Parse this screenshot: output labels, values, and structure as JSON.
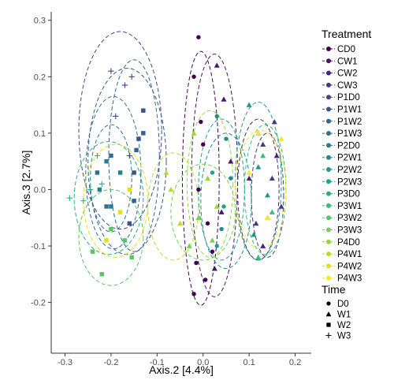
{
  "chart_data": {
    "type": "scatter",
    "xlabel": "Axis.2  [4.4%]",
    "ylabel": "Axis.3  [2.7%]",
    "xlim": [
      -0.33,
      0.235
    ],
    "ylim": [
      -0.29,
      0.315
    ],
    "x_ticks": [
      -0.3,
      -0.2,
      -0.1,
      0.0,
      0.1,
      0.2
    ],
    "x_tick_labels": [
      "-0.3",
      "-0.2",
      "-0.1",
      "0.0",
      "0.1",
      "0.2"
    ],
    "y_ticks": [
      -0.2,
      -0.1,
      0.0,
      0.1,
      0.2,
      0.3
    ],
    "y_tick_labels": [
      "-0.2",
      "-0.1",
      "0.0",
      "0.1",
      "0.2",
      "0.3"
    ],
    "grid": false,
    "legend_position": "right",
    "treatment_legend": {
      "title": "Treatment",
      "entries": [
        {
          "name": "CD0",
          "color": "#440154"
        },
        {
          "name": "CW1",
          "color": "#481568"
        },
        {
          "name": "CW2",
          "color": "#482677"
        },
        {
          "name": "CW3",
          "color": "#453781"
        },
        {
          "name": "P1D0",
          "color": "#3F4788"
        },
        {
          "name": "P1W1",
          "color": "#39558C"
        },
        {
          "name": "P1W2",
          "color": "#32648E"
        },
        {
          "name": "P1W3",
          "color": "#2D718E"
        },
        {
          "name": "P2D0",
          "color": "#287D8E"
        },
        {
          "name": "P2W1",
          "color": "#238A8D"
        },
        {
          "name": "P2W2",
          "color": "#1F968B"
        },
        {
          "name": "P2W3",
          "color": "#20A386"
        },
        {
          "name": "P3D0",
          "color": "#29AF7F"
        },
        {
          "name": "P3W1",
          "color": "#3CBC75"
        },
        {
          "name": "P3W2",
          "color": "#56C667"
        },
        {
          "name": "P3W3",
          "color": "#75D054"
        },
        {
          "name": "P4D0",
          "color": "#95D840"
        },
        {
          "name": "P4W1",
          "color": "#BADE28"
        },
        {
          "name": "P4W2",
          "color": "#DDE318"
        },
        {
          "name": "P4W3",
          "color": "#FDE725"
        }
      ]
    },
    "time_legend": {
      "title": "Time",
      "entries": [
        {
          "name": "D0",
          "shape": "circle"
        },
        {
          "name": "W1",
          "shape": "triangle"
        },
        {
          "name": "W2",
          "shape": "square"
        },
        {
          "name": "W3",
          "shape": "plus"
        }
      ]
    },
    "ellipses": [
      {
        "group": "CD0",
        "cx": -0.005,
        "cy": 0.02,
        "rx": 0.04,
        "ry": 0.225
      },
      {
        "group": "CW1",
        "cx": 0.025,
        "cy": 0.025,
        "rx": 0.05,
        "ry": 0.215
      },
      {
        "group": "CW2",
        "cx": 0.12,
        "cy": 0.0,
        "rx": 0.045,
        "ry": 0.125
      },
      {
        "group": "CW3",
        "cx": 0.14,
        "cy": -0.01,
        "rx": 0.035,
        "ry": 0.11
      },
      {
        "group": "P1D0",
        "cx": -0.18,
        "cy": 0.105,
        "rx": 0.09,
        "ry": 0.175
      },
      {
        "group": "P1W1",
        "cx": -0.165,
        "cy": 0.05,
        "rx": 0.085,
        "ry": 0.165
      },
      {
        "group": "P1W2",
        "cx": -0.15,
        "cy": 0.06,
        "rx": 0.055,
        "ry": 0.17
      },
      {
        "group": "P1W3",
        "cx": -0.195,
        "cy": 0.03,
        "rx": 0.06,
        "ry": 0.135
      },
      {
        "group": "P2D0",
        "cx": -0.2,
        "cy": 0.02,
        "rx": 0.045,
        "ry": 0.095
      },
      {
        "group": "P2W1",
        "cx": 0.05,
        "cy": -0.02,
        "rx": 0.055,
        "ry": 0.12
      },
      {
        "group": "P2W2",
        "cx": 0.12,
        "cy": 0.015,
        "rx": 0.05,
        "ry": 0.14
      },
      {
        "group": "P2W3",
        "cx": 0.04,
        "cy": 0.0,
        "rx": 0.05,
        "ry": 0.125
      },
      {
        "group": "P3D0",
        "cx": -0.205,
        "cy": -0.015,
        "rx": 0.075,
        "ry": 0.1
      },
      {
        "group": "P3W1",
        "cx": 0.135,
        "cy": 0.0,
        "rx": 0.045,
        "ry": 0.115
      },
      {
        "group": "P3W2",
        "cx": -0.2,
        "cy": -0.085,
        "rx": 0.07,
        "ry": 0.085
      },
      {
        "group": "P3W3",
        "cx": 0.0,
        "cy": -0.04,
        "rx": 0.07,
        "ry": 0.085
      },
      {
        "group": "P4D0",
        "cx": 0.015,
        "cy": 0.01,
        "rx": 0.05,
        "ry": 0.13
      },
      {
        "group": "P4W1",
        "cx": -0.065,
        "cy": -0.03,
        "rx": 0.055,
        "ry": 0.095
      },
      {
        "group": "P4W2",
        "cx": -0.19,
        "cy": -0.02,
        "rx": 0.07,
        "ry": 0.1
      },
      {
        "group": "P4W3",
        "cx": 0.125,
        "cy": 0.0,
        "rx": 0.055,
        "ry": 0.105
      }
    ],
    "points": [
      {
        "x": -0.01,
        "y": 0.27,
        "group": "CD0",
        "time": "D0"
      },
      {
        "x": -0.02,
        "y": 0.2,
        "group": "CD0",
        "time": "D0"
      },
      {
        "x": -0.005,
        "y": 0.12,
        "group": "CD0",
        "time": "D0"
      },
      {
        "x": 0.0,
        "y": 0.08,
        "group": "CD0",
        "time": "D0"
      },
      {
        "x": -0.01,
        "y": 0.0,
        "group": "CD0",
        "time": "D0"
      },
      {
        "x": 0.01,
        "y": -0.06,
        "group": "CD0",
        "time": "D0"
      },
      {
        "x": -0.015,
        "y": -0.13,
        "group": "CD0",
        "time": "D0"
      },
      {
        "x": 0.005,
        "y": -0.16,
        "group": "CD0",
        "time": "D0"
      },
      {
        "x": -0.02,
        "y": -0.185,
        "group": "CD0",
        "time": "D0"
      },
      {
        "x": 0.02,
        "y": -0.11,
        "group": "CD0",
        "time": "D0"
      },
      {
        "x": 0.045,
        "y": 0.16,
        "group": "CW1",
        "time": "W1"
      },
      {
        "x": 0.03,
        "y": 0.22,
        "group": "CW1",
        "time": "W1"
      },
      {
        "x": 0.06,
        "y": 0.05,
        "group": "CW1",
        "time": "W1"
      },
      {
        "x": 0.04,
        "y": -0.04,
        "group": "CW1",
        "time": "W1"
      },
      {
        "x": 0.025,
        "y": -0.14,
        "group": "CW1",
        "time": "W1"
      },
      {
        "x": 0.12,
        "y": 0.1,
        "group": "CW2",
        "time": "W1"
      },
      {
        "x": 0.1,
        "y": 0.02,
        "group": "CW2",
        "time": "W1"
      },
      {
        "x": 0.14,
        "y": -0.05,
        "group": "CW2",
        "time": "W1"
      },
      {
        "x": 0.16,
        "y": 0.06,
        "group": "CW2",
        "time": "W1"
      },
      {
        "x": 0.13,
        "y": -0.1,
        "group": "CW2",
        "time": "W1"
      },
      {
        "x": 0.15,
        "y": 0.02,
        "group": "CW3",
        "time": "W1"
      },
      {
        "x": 0.13,
        "y": 0.08,
        "group": "CW3",
        "time": "W1"
      },
      {
        "x": 0.17,
        "y": -0.03,
        "group": "CW3",
        "time": "W1"
      },
      {
        "x": 0.115,
        "y": -0.06,
        "group": "CW3",
        "time": "W1"
      },
      {
        "x": 0.155,
        "y": 0.12,
        "group": "CW3",
        "time": "W1"
      },
      {
        "x": -0.2,
        "y": 0.21,
        "group": "P1D0",
        "time": "W3"
      },
      {
        "x": -0.17,
        "y": 0.185,
        "group": "P1D0",
        "time": "W3"
      },
      {
        "x": -0.155,
        "y": 0.2,
        "group": "P1D0",
        "time": "W3"
      },
      {
        "x": -0.19,
        "y": 0.13,
        "group": "P1D0",
        "time": "W3"
      },
      {
        "x": -0.16,
        "y": 0.06,
        "group": "P1D0",
        "time": "W3"
      },
      {
        "x": -0.13,
        "y": 0.14,
        "group": "P1W1",
        "time": "W2"
      },
      {
        "x": -0.14,
        "y": 0.09,
        "group": "P1W1",
        "time": "W2"
      },
      {
        "x": -0.15,
        "y": 0.03,
        "group": "P1W1",
        "time": "W2"
      },
      {
        "x": -0.16,
        "y": -0.06,
        "group": "P1W1",
        "time": "W2"
      },
      {
        "x": -0.13,
        "y": 0.1,
        "group": "P1W2",
        "time": "W2"
      },
      {
        "x": -0.145,
        "y": 0.07,
        "group": "P1W2",
        "time": "W2"
      },
      {
        "x": -0.15,
        "y": -0.02,
        "group": "P1W2",
        "time": "W2"
      },
      {
        "x": -0.2,
        "y": 0.06,
        "group": "P1W3",
        "time": "W2"
      },
      {
        "x": -0.23,
        "y": 0.03,
        "group": "P1W3",
        "time": "W2"
      },
      {
        "x": -0.21,
        "y": -0.03,
        "group": "P1W3",
        "time": "W2"
      },
      {
        "x": -0.225,
        "y": 0.0,
        "group": "P2D0",
        "time": "W2"
      },
      {
        "x": -0.2,
        "y": -0.03,
        "group": "P2D0",
        "time": "W2"
      },
      {
        "x": -0.18,
        "y": 0.03,
        "group": "P2D0",
        "time": "W2"
      },
      {
        "x": -0.21,
        "y": 0.05,
        "group": "P2D0",
        "time": "W2"
      },
      {
        "x": -0.29,
        "y": -0.015,
        "group": "P3D0",
        "time": "W3"
      },
      {
        "x": -0.26,
        "y": -0.02,
        "group": "P3D0",
        "time": "W3"
      },
      {
        "x": -0.245,
        "y": 0.0,
        "group": "P3D0",
        "time": "W3"
      },
      {
        "x": -0.22,
        "y": 0.01,
        "group": "P3D0",
        "time": "W3"
      },
      {
        "x": -0.23,
        "y": 0.06,
        "group": "P3D0",
        "time": "W3"
      },
      {
        "x": -0.2,
        "y": -0.07,
        "group": "P3W2",
        "time": "W2"
      },
      {
        "x": -0.17,
        "y": -0.09,
        "group": "P3W2",
        "time": "W2"
      },
      {
        "x": -0.22,
        "y": -0.15,
        "group": "P3W2",
        "time": "W2"
      },
      {
        "x": -0.155,
        "y": -0.12,
        "group": "P3W2",
        "time": "W2"
      },
      {
        "x": -0.24,
        "y": -0.11,
        "group": "P3W2",
        "time": "W2"
      },
      {
        "x": 0.03,
        "y": 0.13,
        "group": "P2W1",
        "time": "D0"
      },
      {
        "x": 0.05,
        "y": 0.09,
        "group": "P2W1",
        "time": "D0"
      },
      {
        "x": 0.06,
        "y": 0.02,
        "group": "P2W1",
        "time": "D0"
      },
      {
        "x": 0.04,
        "y": -0.07,
        "group": "P2W1",
        "time": "D0"
      },
      {
        "x": 0.1,
        "y": 0.15,
        "group": "P2W2",
        "time": "W1"
      },
      {
        "x": 0.12,
        "y": 0.04,
        "group": "P2W2",
        "time": "W1"
      },
      {
        "x": 0.11,
        "y": -0.08,
        "group": "P2W2",
        "time": "W1"
      },
      {
        "x": 0.14,
        "y": -0.01,
        "group": "P2W2",
        "time": "W1"
      },
      {
        "x": 0.02,
        "y": 0.03,
        "group": "P2W3",
        "time": "D0"
      },
      {
        "x": 0.045,
        "y": -0.03,
        "group": "P2W3",
        "time": "D0"
      },
      {
        "x": 0.03,
        "y": -0.1,
        "group": "P2W3",
        "time": "D0"
      },
      {
        "x": 0.13,
        "y": 0.06,
        "group": "P3W1",
        "time": "W1"
      },
      {
        "x": 0.15,
        "y": -0.04,
        "group": "P3W1",
        "time": "W1"
      },
      {
        "x": 0.12,
        "y": -0.12,
        "group": "P3W1",
        "time": "W1"
      },
      {
        "x": -0.01,
        "y": -0.05,
        "group": "P3W3",
        "time": "W1"
      },
      {
        "x": 0.02,
        "y": -0.09,
        "group": "P3W3",
        "time": "W1"
      },
      {
        "x": -0.03,
        "y": -0.1,
        "group": "P3W3",
        "time": "W1"
      },
      {
        "x": 0.01,
        "y": 0.02,
        "group": "P4D0",
        "time": "W1"
      },
      {
        "x": -0.02,
        "y": 0.1,
        "group": "P4D0",
        "time": "W1"
      },
      {
        "x": 0.03,
        "y": -0.03,
        "group": "P4D0",
        "time": "W1"
      },
      {
        "x": -0.07,
        "y": 0.0,
        "group": "P4W1",
        "time": "W1"
      },
      {
        "x": -0.05,
        "y": -0.06,
        "group": "P4W1",
        "time": "W1"
      },
      {
        "x": -0.08,
        "y": 0.03,
        "group": "P4W1",
        "time": "W1"
      },
      {
        "x": -0.18,
        "y": -0.04,
        "group": "P4W2",
        "time": "W2"
      },
      {
        "x": -0.16,
        "y": 0.0,
        "group": "P4W2",
        "time": "W2"
      },
      {
        "x": -0.21,
        "y": -0.09,
        "group": "P4W2",
        "time": "W2"
      },
      {
        "x": 0.1,
        "y": 0.03,
        "group": "P4W3",
        "time": "W1"
      },
      {
        "x": 0.14,
        "y": -0.05,
        "group": "P4W3",
        "time": "W1"
      },
      {
        "x": 0.12,
        "y": 0.1,
        "group": "P4W3",
        "time": "W1"
      },
      {
        "x": 0.17,
        "y": 0.09,
        "group": "P4W3",
        "time": "W1"
      }
    ]
  }
}
